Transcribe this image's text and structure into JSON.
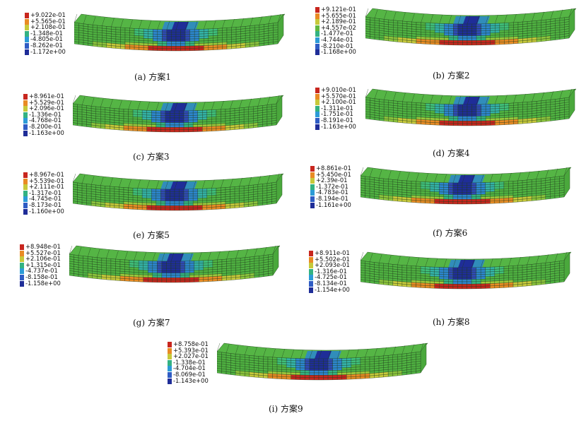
{
  "legend_colors": [
    "#c8261e",
    "#e98b24",
    "#c7c93a",
    "#62b83e",
    "#33b282",
    "#2c9bd7",
    "#2f5cc4",
    "#1f2d98"
  ],
  "panels": [
    {
      "caption": "(a) 方案1",
      "legend": [
        "+9.022e-01",
        "+5.565e-01",
        "+2.108e-01",
        "-1.348e-01",
        "-4.805e-01",
        "-8.262e-01",
        "-1.172e+00"
      ]
    },
    {
      "caption": "(b) 方案2",
      "legend": [
        "+9.121e-01",
        "+5.655e-01",
        "+2.189e-01",
        "+4.557e-02",
        "-1.477e-01",
        "-4.744e-01",
        "-8.210e-01",
        "-1.168e+00"
      ]
    },
    {
      "caption": "(c) 方案3",
      "legend": [
        "+8.961e-01",
        "+5.529e-01",
        "+2.096e-01",
        "-1.336e-01",
        "-4.768e-01",
        "-8.200e-01",
        "-1.163e+00"
      ]
    },
    {
      "caption": "(d) 方案4",
      "legend": [
        "+9.010e-01",
        "+5.570e-01",
        "+2.100e-01",
        "-1.311e-01",
        "-1.751e-01",
        "-8.191e-01",
        "-1.163e+00"
      ]
    },
    {
      "caption": "(e) 方案5",
      "legend": [
        "+8.967e-01",
        "+5.539e-01",
        "+2.111e-01",
        "-1.317e-01",
        "-4.745e-01",
        "-8.173e-01",
        "-1.160e+00"
      ]
    },
    {
      "caption": "(f) 方案6",
      "legend": [
        "+8.861e-01",
        "+5.450e-01",
        "+2.39e-01",
        "-1.372e-01",
        "-4.783e-01",
        "-8.194e-01",
        "-1.161e+00"
      ]
    },
    {
      "caption": "(g) 方案7",
      "legend": [
        "+8.948e-01",
        "+5.527e-01",
        "+2.106e-01",
        "+1.315e-01",
        "-4.737e-01",
        "-8.158e-01",
        "-1.158e+00"
      ]
    },
    {
      "caption": "(h) 方案8",
      "legend": [
        "+8.911e-01",
        "+5.502e-01",
        "+2.093e-01",
        "-1.316e-01",
        "-4.725e-01",
        "-8.134e-01",
        "-1.154e+00"
      ]
    },
    {
      "caption": "(i) 方案9",
      "legend": [
        "+8.758e-01",
        "+5.393e-01",
        "+2.027e-01",
        "-1.338e-01",
        "-4.704e-01",
        "-8.069e-01",
        "-1.143e+00"
      ]
    }
  ]
}
